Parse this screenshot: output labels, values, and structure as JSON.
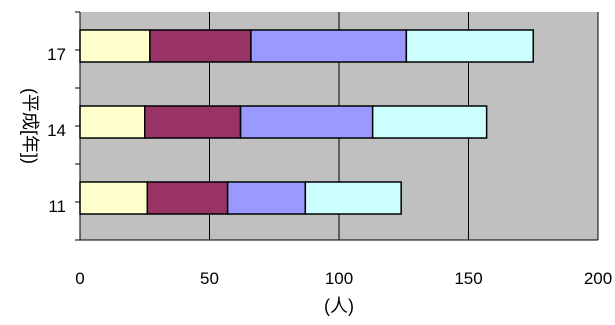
{
  "chart_data": {
    "type": "bar",
    "orientation": "horizontal",
    "stacked": true,
    "categories": [
      "11",
      "14",
      "17"
    ],
    "series": [
      {
        "values": [
          26,
          25,
          27
        ],
        "color": "#FFFFCC"
      },
      {
        "values": [
          31,
          37,
          39
        ],
        "color": "#993366"
      },
      {
        "values": [
          30,
          51,
          60
        ],
        "color": "#9999FF"
      },
      {
        "values": [
          37,
          44,
          49
        ],
        "color": "#CCFFFF"
      }
    ],
    "xlabel": "(人)",
    "ylabel": "(平成[年])",
    "xlim": [
      0,
      200
    ],
    "xticks": [
      "0",
      "50",
      "100",
      "150",
      "200"
    ],
    "grid": "vertical",
    "legend": "none",
    "plot_background": "#C0C0C0"
  }
}
